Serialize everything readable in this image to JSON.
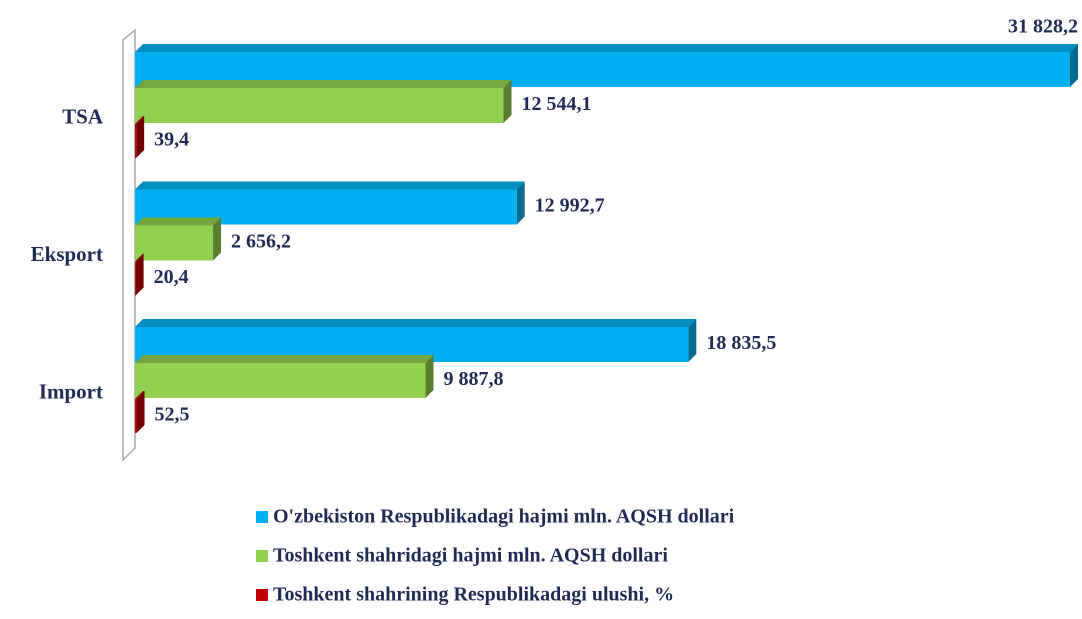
{
  "chart_data": {
    "type": "bar",
    "orientation": "horizontal",
    "categories": [
      "TSA",
      "Eksport",
      "Import"
    ],
    "series": [
      {
        "name": "O'zbekiston Respublikadagi hajmi mln. AQSH dollari",
        "color": "#00b0f0",
        "values": [
          31828.2,
          12992.7,
          18835.5
        ],
        "value_labels": [
          "31 828,2",
          "12 992,7",
          "18 835,5"
        ]
      },
      {
        "name": "Toshkent shahridagi hajmi mln. AQSH dollari",
        "color": "#92d050",
        "values": [
          12544.1,
          2656.2,
          9887.8
        ],
        "value_labels": [
          "12 544,1",
          "2 656,2",
          "9 887,8"
        ]
      },
      {
        "name": "Toshkent shahrining Respublikadagi ulushi, %",
        "color": "#c00000",
        "values": [
          39.4,
          20.4,
          52.5
        ],
        "value_labels": [
          "39,4",
          "20,4",
          "52,5"
        ]
      }
    ],
    "legend": "bottom"
  }
}
